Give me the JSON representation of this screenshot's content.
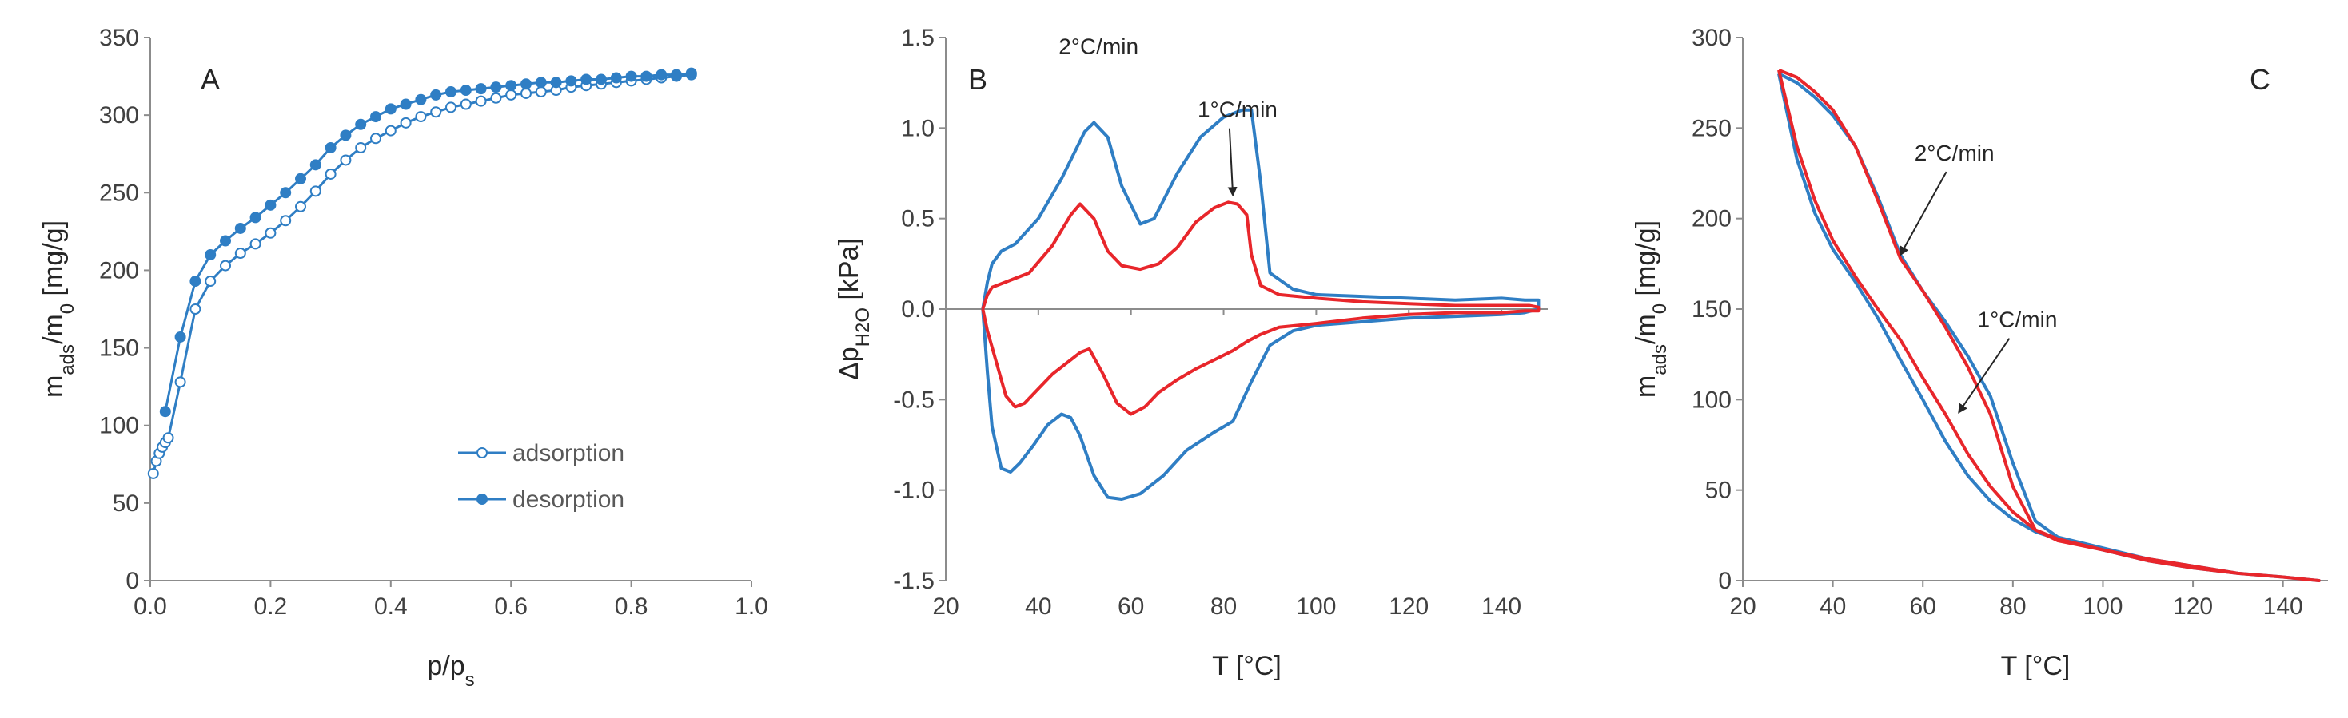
{
  "colors": {
    "blue": "#2f7ec4",
    "red": "#e8262b"
  },
  "chart_data": [
    {
      "type": "line",
      "panel_label": "A",
      "xlabel": "p/p",
      "xlabel_sub": "s",
      "ylabel_main": "m",
      "ylabel_sub1": "ads",
      "ylabel_mid": "/m",
      "ylabel_sub2": "0",
      "ylabel_unit": " [mg/g]",
      "xlim": [
        0,
        1.0
      ],
      "ylim": [
        0,
        350
      ],
      "xticks": [
        0.0,
        0.2,
        0.4,
        0.6,
        0.8,
        1.0
      ],
      "xtick_labels": [
        "0.0",
        "0.2",
        "0.4",
        "0.6",
        "0.8",
        "1.0"
      ],
      "yticks": [
        0,
        50,
        100,
        150,
        200,
        250,
        300,
        350
      ],
      "ytick_labels": [
        "0",
        "50",
        "100",
        "150",
        "200",
        "250",
        "300",
        "350"
      ],
      "legend_position": "bottom-right",
      "series": [
        {
          "name": "adsorption",
          "marker": "open-circle",
          "x": [
            0.005,
            0.01,
            0.015,
            0.02,
            0.025,
            0.03,
            0.05,
            0.075,
            0.1,
            0.125,
            0.15,
            0.175,
            0.2,
            0.225,
            0.25,
            0.275,
            0.3,
            0.325,
            0.35,
            0.375,
            0.4,
            0.425,
            0.45,
            0.475,
            0.5,
            0.525,
            0.55,
            0.575,
            0.6,
            0.625,
            0.65,
            0.675,
            0.7,
            0.725,
            0.75,
            0.775,
            0.8,
            0.825,
            0.85,
            0.875,
            0.9
          ],
          "y": [
            69,
            77,
            82,
            86,
            89,
            92,
            128,
            175,
            193,
            203,
            211,
            217,
            224,
            232,
            241,
            251,
            262,
            271,
            279,
            285,
            290,
            295,
            299,
            302,
            305,
            307,
            309,
            311,
            313,
            314,
            315,
            316,
            318,
            319,
            320,
            321,
            322,
            323,
            324,
            325,
            326
          ]
        },
        {
          "name": "desorption",
          "marker": "filled-circle",
          "x": [
            0.025,
            0.05,
            0.075,
            0.1,
            0.125,
            0.15,
            0.175,
            0.2,
            0.225,
            0.25,
            0.275,
            0.3,
            0.325,
            0.35,
            0.375,
            0.4,
            0.425,
            0.45,
            0.475,
            0.5,
            0.525,
            0.55,
            0.575,
            0.6,
            0.625,
            0.65,
            0.675,
            0.7,
            0.725,
            0.75,
            0.775,
            0.8,
            0.825,
            0.85,
            0.875,
            0.9
          ],
          "y": [
            109,
            157,
            193,
            210,
            219,
            227,
            234,
            242,
            250,
            259,
            268,
            279,
            287,
            294,
            299,
            304,
            307,
            310,
            313,
            315,
            316,
            317,
            318,
            319,
            320,
            321,
            321,
            322,
            323,
            323,
            324,
            325,
            325,
            326,
            326,
            327
          ]
        }
      ]
    },
    {
      "type": "line",
      "panel_label": "B",
      "xlabel": "T [°C]",
      "ylabel_main": "Δp",
      "ylabel_sub": "H2O",
      "ylabel_unit": " [kPa]",
      "xlim": [
        20,
        150
      ],
      "ylim": [
        -1.5,
        1.5
      ],
      "xticks": [
        20,
        40,
        60,
        80,
        100,
        120,
        140
      ],
      "xtick_labels": [
        "20",
        "40",
        "60",
        "80",
        "100",
        "120",
        "140"
      ],
      "yticks": [
        -1.5,
        -1.0,
        -0.5,
        0.0,
        0.5,
        1.0,
        1.5
      ],
      "ytick_labels": [
        "-1.5",
        "-1.0",
        "-0.5",
        "0.0",
        "0.5",
        "1.0",
        "1.5"
      ],
      "annotations": [
        {
          "text": "2°C/min",
          "x": 53,
          "y": 1.41
        },
        {
          "text": "1°C/min",
          "x": 83,
          "y": 1.06,
          "arrow_to": [
            82,
            0.63
          ]
        }
      ],
      "series": [
        {
          "name": "2°C/min",
          "color_key": "blue",
          "x": [
            28,
            29,
            30,
            32,
            35,
            40,
            45,
            50,
            52,
            55,
            58,
            62,
            65,
            70,
            75,
            80,
            84,
            86,
            88,
            90,
            95,
            100,
            110,
            120,
            130,
            140,
            145,
            148,
            148,
            145,
            140,
            130,
            120,
            110,
            100,
            95,
            90,
            86,
            82,
            78,
            72,
            67,
            62,
            58,
            55,
            52,
            49,
            47,
            45,
            42,
            39,
            36,
            34,
            32,
            30,
            29,
            28
          ],
          "y": [
            0,
            0.15,
            0.25,
            0.32,
            0.36,
            0.5,
            0.72,
            0.98,
            1.03,
            0.95,
            0.68,
            0.47,
            0.5,
            0.75,
            0.95,
            1.06,
            1.1,
            1.1,
            0.7,
            0.2,
            0.11,
            0.08,
            0.07,
            0.06,
            0.05,
            0.06,
            0.05,
            0.05,
            0.0,
            -0.02,
            -0.03,
            -0.04,
            -0.05,
            -0.07,
            -0.09,
            -0.12,
            -0.2,
            -0.4,
            -0.62,
            -0.68,
            -0.78,
            -0.92,
            -1.02,
            -1.05,
            -1.04,
            -0.92,
            -0.7,
            -0.6,
            -0.58,
            -0.64,
            -0.75,
            -0.85,
            -0.9,
            -0.88,
            -0.65,
            -0.35,
            0
          ]
        },
        {
          "name": "1°C/min",
          "color_key": "red",
          "x": [
            28,
            29,
            30,
            33,
            38,
            43,
            47,
            49,
            52,
            55,
            58,
            62,
            66,
            70,
            74,
            78,
            81,
            83,
            85,
            86,
            88,
            92,
            100,
            110,
            120,
            130,
            140,
            146,
            148,
            148,
            145,
            140,
            130,
            120,
            110,
            100,
            92,
            88,
            85,
            82,
            78,
            74,
            70,
            66,
            63,
            60,
            57,
            54,
            51,
            49,
            46,
            43,
            40,
            37,
            35,
            33,
            31,
            29,
            28
          ],
          "y": [
            0,
            0.08,
            0.12,
            0.15,
            0.2,
            0.35,
            0.52,
            0.58,
            0.5,
            0.32,
            0.24,
            0.22,
            0.25,
            0.34,
            0.48,
            0.56,
            0.59,
            0.58,
            0.52,
            0.3,
            0.13,
            0.08,
            0.06,
            0.04,
            0.03,
            0.02,
            0.02,
            0.02,
            0.01,
            -0.01,
            -0.01,
            -0.02,
            -0.02,
            -0.03,
            -0.05,
            -0.08,
            -0.1,
            -0.14,
            -0.18,
            -0.23,
            -0.28,
            -0.33,
            -0.39,
            -0.46,
            -0.54,
            -0.58,
            -0.52,
            -0.36,
            -0.22,
            -0.24,
            -0.3,
            -0.36,
            -0.44,
            -0.52,
            -0.54,
            -0.48,
            -0.3,
            -0.12,
            0
          ]
        }
      ]
    },
    {
      "type": "line",
      "panel_label": "C",
      "xlabel": "T [°C]",
      "ylabel_main": "m",
      "ylabel_sub1": "ads",
      "ylabel_mid": "/m",
      "ylabel_sub2": "0",
      "ylabel_unit": " [mg/g]",
      "xlim": [
        20,
        150
      ],
      "ylim": [
        0,
        300
      ],
      "xticks": [
        20,
        40,
        60,
        80,
        100,
        120,
        140
      ],
      "xtick_labels": [
        "20",
        "40",
        "60",
        "80",
        "100",
        "120",
        "140"
      ],
      "yticks": [
        0,
        50,
        100,
        150,
        200,
        250,
        300
      ],
      "ytick_labels": [
        "0",
        "50",
        "100",
        "150",
        "200",
        "250",
        "300"
      ],
      "annotations": [
        {
          "text": "2°C/min",
          "x": 67,
          "y": 232,
          "arrow_to": [
            55,
            180
          ]
        },
        {
          "text": "1°C/min",
          "x": 81,
          "y": 140,
          "arrow_to": [
            68,
            93
          ]
        }
      ],
      "series": [
        {
          "name": "2°C/min",
          "color_key": "blue",
          "x": [
            28,
            32,
            36,
            40,
            45,
            50,
            55,
            60,
            65,
            70,
            75,
            80,
            85,
            90,
            100,
            110,
            120,
            130,
            140,
            148,
            148,
            140,
            130,
            120,
            110,
            100,
            90,
            85,
            80,
            75,
            70,
            65,
            60,
            55,
            50,
            45,
            40,
            36,
            32,
            28
          ],
          "y": [
            280,
            275,
            267,
            257,
            240,
            212,
            180,
            160,
            143,
            124,
            102,
            65,
            33,
            24,
            18,
            12,
            8,
            4,
            2,
            0,
            0,
            2,
            4,
            7,
            11,
            17,
            23,
            27,
            34,
            44,
            58,
            77,
            100,
            122,
            145,
            165,
            183,
            203,
            233,
            280
          ]
        },
        {
          "name": "1°C/min",
          "color_key": "red",
          "x": [
            28,
            32,
            36,
            40,
            45,
            50,
            55,
            60,
            65,
            70,
            75,
            80,
            85,
            90,
            100,
            110,
            120,
            130,
            140,
            148,
            148,
            140,
            130,
            120,
            110,
            100,
            90,
            85,
            80,
            75,
            70,
            65,
            60,
            55,
            50,
            45,
            40,
            36,
            32,
            28
          ],
          "y": [
            282,
            278,
            270,
            260,
            240,
            210,
            178,
            160,
            140,
            118,
            92,
            52,
            28,
            22,
            17,
            12,
            8,
            4,
            2,
            0,
            0,
            2,
            4,
            7,
            11,
            17,
            23,
            28,
            38,
            52,
            70,
            92,
            112,
            133,
            150,
            168,
            188,
            210,
            240,
            282
          ]
        }
      ]
    }
  ]
}
